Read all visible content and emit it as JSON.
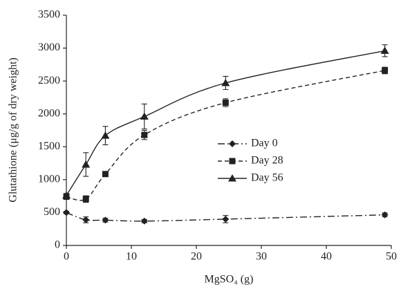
{
  "chart_data": {
    "type": "line",
    "x_label": "MgSO₄ (g)",
    "y_label": "Glutathione (μg/g of dry weight)",
    "x": [
      0,
      3,
      6,
      12,
      24.5,
      49
    ],
    "xlim": [
      0,
      50
    ],
    "xticks": [
      0,
      10,
      20,
      30,
      40,
      50
    ],
    "ylim": [
      0,
      3500
    ],
    "yticks": [
      0,
      500,
      1000,
      1500,
      2000,
      2500,
      3000,
      3500
    ],
    "grid": false,
    "legend": "center-right",
    "series": [
      {
        "name": "Day 0",
        "color": "#222222",
        "marker": "diamond",
        "dash": "dashdot",
        "values": [
          500,
          390,
          385,
          370,
          400,
          465
        ],
        "errors": [
          20,
          45,
          30,
          25,
          55,
          30
        ]
      },
      {
        "name": "Day 28",
        "color": "#222222",
        "marker": "square",
        "dash": "dashed",
        "values": [
          740,
          705,
          1085,
          1680,
          2170,
          2660
        ],
        "errors": [
          30,
          50,
          30,
          70,
          60,
          50
        ]
      },
      {
        "name": "Day 56",
        "color": "#222222",
        "marker": "triangle",
        "dash": "solid",
        "values": [
          760,
          1230,
          1670,
          1960,
          2470,
          2960
        ],
        "errors": [
          30,
          180,
          140,
          190,
          100,
          90
        ]
      }
    ]
  }
}
